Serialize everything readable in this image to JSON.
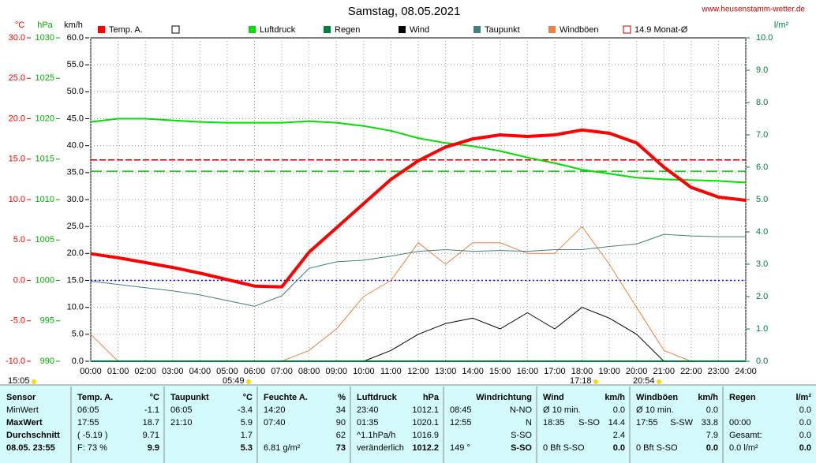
{
  "title": "Samstag, 08.05.2021",
  "source": "www.heusenstamm-wetter.de",
  "chart_data": {
    "type": "line",
    "categories": [
      "00:00",
      "01:00",
      "02:00",
      "03:00",
      "04:00",
      "05:00",
      "06:00",
      "07:00",
      "08:00",
      "09:00",
      "10:00",
      "11:00",
      "12:00",
      "13:00",
      "14:00",
      "15:00",
      "16:00",
      "17:00",
      "18:00",
      "19:00",
      "20:00",
      "21:00",
      "22:00",
      "23:00",
      "24:00"
    ],
    "axes": [
      {
        "label": "°C",
        "color": "#ff0000",
        "lim": [
          -10,
          30
        ],
        "ticks": [
          {
            "value": 30,
            "label": "30.0"
          },
          {
            "value": 25,
            "label": "25.0"
          },
          {
            "value": 20,
            "label": "20.0"
          },
          {
            "value": 15,
            "label": "15.0"
          },
          {
            "value": 10,
            "label": "10.0"
          },
          {
            "value": 5,
            "label": "5.0"
          },
          {
            "value": 0,
            "label": "0.0"
          },
          {
            "value": -5,
            "label": "-5.0"
          },
          {
            "value": -10,
            "label": "-10.0"
          }
        ]
      },
      {
        "label": "hPa",
        "color": "#00b000",
        "lim": [
          990,
          1030
        ],
        "ticks": [
          1030,
          1025,
          1020,
          1015,
          1010,
          1005,
          1000,
          995,
          990
        ]
      },
      {
        "label": "km/h",
        "color": "#000000",
        "lim": [
          0,
          60
        ],
        "grid": true,
        "ticks": [
          {
            "value": 60,
            "label": "60.0"
          },
          {
            "value": 55,
            "label": "55.0"
          },
          {
            "value": 50,
            "label": "50.0"
          },
          {
            "value": 45,
            "label": "45.0"
          },
          {
            "value": 40,
            "label": "40.0"
          },
          {
            "value": 35,
            "label": "35.0"
          },
          {
            "value": 30,
            "label": "30.0"
          },
          {
            "value": 25,
            "label": "25.0"
          },
          {
            "value": 20,
            "label": "20.0"
          },
          {
            "value": 15,
            "label": "15.0"
          },
          {
            "value": 10,
            "label": "10.0"
          },
          {
            "value": 5,
            "label": "5.0"
          },
          {
            "value": 0,
            "label": "0.0"
          }
        ]
      },
      {
        "label": "l/m²",
        "color": "#008040",
        "lim": [
          0,
          10
        ],
        "side": "right",
        "ticks": [
          {
            "value": 10,
            "label": "10.0"
          },
          {
            "value": 9,
            "label": "9.0"
          },
          {
            "value": 8,
            "label": "8.0"
          },
          {
            "value": 7,
            "label": "7.0"
          },
          {
            "value": 6,
            "label": "6.0"
          },
          {
            "value": 5,
            "label": "5.0"
          },
          {
            "value": 4,
            "label": "4.0"
          },
          {
            "value": 3,
            "label": "3.0"
          },
          {
            "value": 2,
            "label": "2.0"
          },
          {
            "value": 1,
            "label": "1.0"
          },
          {
            "value": 0,
            "label": "0.0"
          }
        ]
      }
    ],
    "series": [
      {
        "name": "Temp. A.",
        "color": "#ff0000",
        "width": 4,
        "axis": 0,
        "values": [
          3.3,
          2.8,
          2.2,
          1.6,
          0.9,
          0.1,
          -0.7,
          -0.8,
          3.5,
          6.5,
          9.5,
          12.5,
          14.8,
          16.5,
          17.5,
          18.0,
          17.8,
          18.0,
          18.6,
          18.2,
          17.0,
          14.0,
          11.5,
          10.3,
          9.9
        ]
      },
      {
        "name": "Luftdruck",
        "color": "#00e000",
        "width": 2,
        "axis": 1,
        "values": [
          1019.6,
          1020.0,
          1020.0,
          1019.8,
          1019.6,
          1019.5,
          1019.5,
          1019.5,
          1019.7,
          1019.5,
          1019.1,
          1018.5,
          1017.6,
          1017.0,
          1016.6,
          1016.0,
          1015.2,
          1014.5,
          1013.7,
          1013.2,
          1012.7,
          1012.5,
          1012.4,
          1012.3,
          1012.1
        ]
      },
      {
        "name": "Regen",
        "color": "#008040",
        "width": 2,
        "axis": 3,
        "values": [
          0,
          0,
          0,
          0,
          0,
          0,
          0,
          0,
          0,
          0,
          0,
          0,
          0,
          0,
          0,
          0,
          0,
          0,
          0,
          0,
          0,
          0,
          0,
          0,
          0
        ]
      },
      {
        "name": "Wind",
        "color": "#000000",
        "width": 1,
        "axis": 2,
        "values": [
          0,
          0,
          0,
          0,
          0,
          0,
          0,
          0,
          0,
          0,
          0,
          2,
          5,
          7,
          8,
          6,
          9,
          6,
          10,
          8,
          5,
          0,
          0,
          0,
          0
        ]
      },
      {
        "name": "Taupunkt",
        "color": "#3f7f7f",
        "width": 1,
        "axis": 0,
        "values": [
          -0.1,
          -0.5,
          -0.9,
          -1.3,
          -1.8,
          -2.5,
          -3.2,
          -1.9,
          1.5,
          2.3,
          2.5,
          3.0,
          3.6,
          3.8,
          3.6,
          3.7,
          3.6,
          3.8,
          3.8,
          4.2,
          4.5,
          5.7,
          5.5,
          5.4,
          5.4
        ]
      },
      {
        "name": "Windböen",
        "color": "#f08040",
        "width": 1,
        "axis": 2,
        "values": [
          5,
          0,
          0,
          0,
          0,
          0,
          0,
          0,
          2,
          6,
          12,
          15,
          22,
          18,
          22,
          22,
          20,
          20,
          25,
          18,
          10,
          2,
          0,
          0,
          0
        ]
      }
    ],
    "ref_lines": [
      {
        "name": "14.9 Monat-Ø",
        "value": 14.9,
        "axis": 0,
        "color": "#c00000",
        "dash": "8 3"
      },
      {
        "value": 1013.5,
        "axis": 1,
        "color": "#00c000",
        "dash": "14 6"
      },
      {
        "value": 0,
        "axis": 0,
        "color": "#0000ff",
        "dash": "2 3"
      }
    ],
    "annotations": [
      "15:05",
      "05:49",
      "17:18",
      "20:54"
    ]
  },
  "stats": {
    "groups": [
      {
        "header": [
          "Sensor"
        ],
        "rows": [
          [
            "MinWert"
          ],
          [
            "MaxWert"
          ],
          [
            "Durchschnitt"
          ],
          [
            "08.05. 23:55"
          ]
        ]
      },
      {
        "header": [
          "Temp. A.",
          "°C"
        ],
        "rows": [
          [
            "06:05",
            "-1.1"
          ],
          [
            "17:55",
            "18.7"
          ],
          [
            "( -5.19 )",
            "9.71"
          ],
          [
            "F: 73 %",
            "9.9"
          ]
        ]
      },
      {
        "header": [
          "Taupunkt",
          "°C"
        ],
        "rows": [
          [
            "06:05",
            "-3.4"
          ],
          [
            "21:10",
            "5.9"
          ],
          [
            "1.7"
          ],
          [
            "5.3"
          ]
        ]
      },
      {
        "header": [
          "Feuchte A.",
          "%"
        ],
        "rows": [
          [
            "14:20",
            "34"
          ],
          [
            "07:40",
            "90"
          ],
          [
            "62"
          ],
          [
            "6.81 g/m²",
            "73"
          ]
        ]
      },
      {
        "header": [
          "Luftdruck",
          "hPa"
        ],
        "rows": [
          [
            "23:40",
            "1012.1"
          ],
          [
            "01:35",
            "1020.1"
          ],
          [
            "^1.1hPa/h",
            "1016.9"
          ],
          [
            "veränderlich",
            "1012.2"
          ]
        ]
      },
      {
        "header": [
          "Windrichtung"
        ],
        "rows": [
          [
            "08:45",
            "N-NO"
          ],
          [
            "12:55",
            "N"
          ],
          [
            "S-SO"
          ],
          [
            "149 °",
            "S-SO"
          ]
        ]
      },
      {
        "header": [
          "Wind",
          "km/h"
        ],
        "rows": [
          [
            "Ø 10 min.",
            "0.0"
          ],
          [
            "18:35",
            "S-SO",
            "14.4"
          ],
          [
            "2.4"
          ],
          [
            "0 Bft S-SO",
            "0.0"
          ]
        ]
      },
      {
        "header": [
          "Windböen",
          "km/h"
        ],
        "rows": [
          [
            "Ø 10 min.",
            "0.0"
          ],
          [
            "17:55",
            "S-SW",
            "33.8"
          ],
          [
            "7.9"
          ],
          [
            "0 Bft S-SO",
            "0.0"
          ]
        ]
      },
      {
        "header": [
          "Regen",
          "l/m²"
        ],
        "rows": [
          [
            "0.0"
          ],
          [
            "00:00",
            "0.0"
          ],
          [
            "Gesamt:",
            "0.0"
          ],
          [
            "0.0 l/m²",
            "0.0"
          ]
        ]
      }
    ]
  }
}
